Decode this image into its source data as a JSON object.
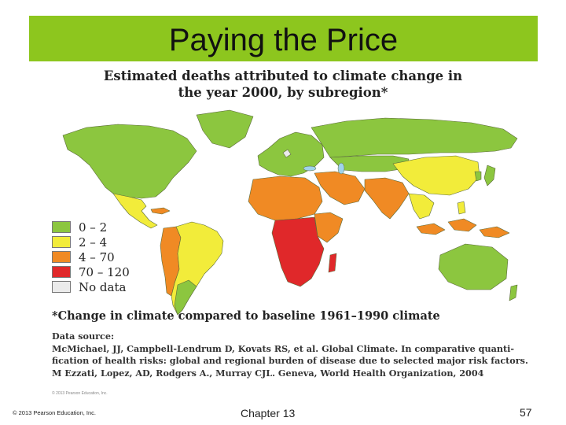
{
  "slide": {
    "title": "Paying the Price",
    "title_bar_color": "#8dc61e"
  },
  "map": {
    "title_line1": "Estimated deaths attributed to climate change in",
    "title_line2": "the year 2000, by subregion*",
    "legend": [
      {
        "label": "0 – 2",
        "color": "#8cc63f"
      },
      {
        "label": "2 – 4",
        "color": "#f2ec3a"
      },
      {
        "label": "4 – 70",
        "color": "#f08a24"
      },
      {
        "label": "70 – 120",
        "color": "#e0282a"
      },
      {
        "label": "No data",
        "color": "#ebebeb"
      }
    ],
    "footnote": "*Change in climate compared to baseline 1961–1990 climate",
    "source_heading": "Data source:",
    "source_line1": "McMichael, JJ, Campbell-Lendrum D, Kovats RS, et al. Global Climate. In comparative quanti-",
    "source_line2": "fication of health risks: global and regional burden of disease due to selected major risk factors.",
    "source_line3": "M Ezzati, Lopez, AD, Rodgers A., Murray CJL. Geneva, World Health Organization, 2004",
    "copyright_small": "© 2013 Pearson Education, Inc."
  },
  "footer": {
    "copyright": "© 2013 Pearson Education, Inc.",
    "chapter": "Chapter 13",
    "page_number": "57"
  }
}
